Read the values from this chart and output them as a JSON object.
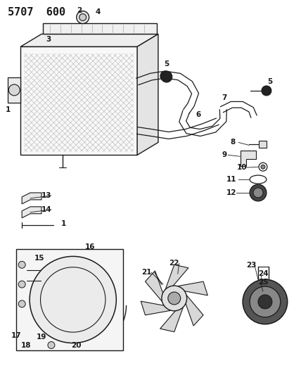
{
  "title": "5707  600",
  "bg_color": "#ffffff",
  "lc": "#1a1a1a",
  "title_fontsize": 11,
  "label_fontsize": 7.5,
  "fig_width": 4.28,
  "fig_height": 5.33,
  "dpi": 100
}
